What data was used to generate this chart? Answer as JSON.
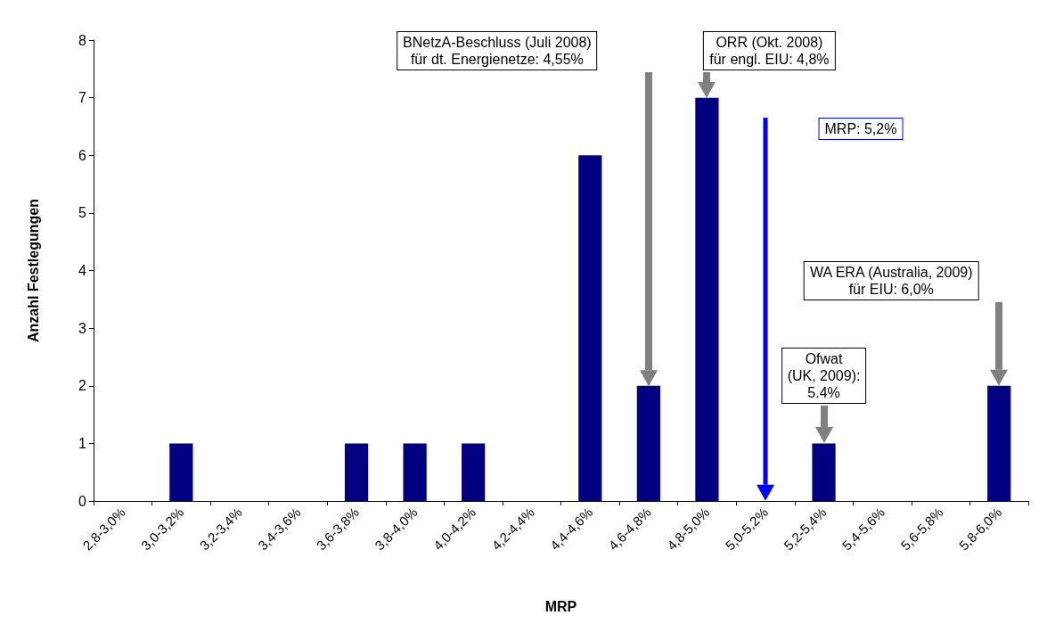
{
  "chart_data": {
    "type": "bar",
    "xlabel": "MRP",
    "ylabel": "Anzahl Festlegungen",
    "categories": [
      "2,8-3,0%",
      "3,0-3,2%",
      "3,2-3,4%",
      "3,4-3,6%",
      "3,6-3,8%",
      "3,8-4,0%",
      "4,0-4,2%",
      "4,2-4,4%",
      "4,4-4,6%",
      "4,6-4,8%",
      "4,8-5,0%",
      "5,0-5,2%",
      "5,2-5,4%",
      "5,4-5,6%",
      "5,6-5,8%",
      "5,8-6,0%"
    ],
    "values": [
      0,
      1,
      0,
      0,
      1,
      1,
      1,
      0,
      6,
      2,
      7,
      0,
      1,
      0,
      0,
      2
    ],
    "color": "#000080",
    "ylim": [
      0,
      8
    ],
    "yticks": [
      0,
      1,
      2,
      3,
      4,
      5,
      6,
      7,
      8
    ],
    "grid": false,
    "annotations": [
      "BNetzA-Beschluss (Juli 2008)\nfür dt. Energienetze: 4,55%",
      "ORR (Okt. 2008)\nfür engl. EIU: 4,8%",
      "MRP: 5,2%",
      "Ofwat\n(UK, 2009):\n5.4%",
      "WA ERA (Australia, 2009)\nfür EIU: 6,0%"
    ]
  }
}
